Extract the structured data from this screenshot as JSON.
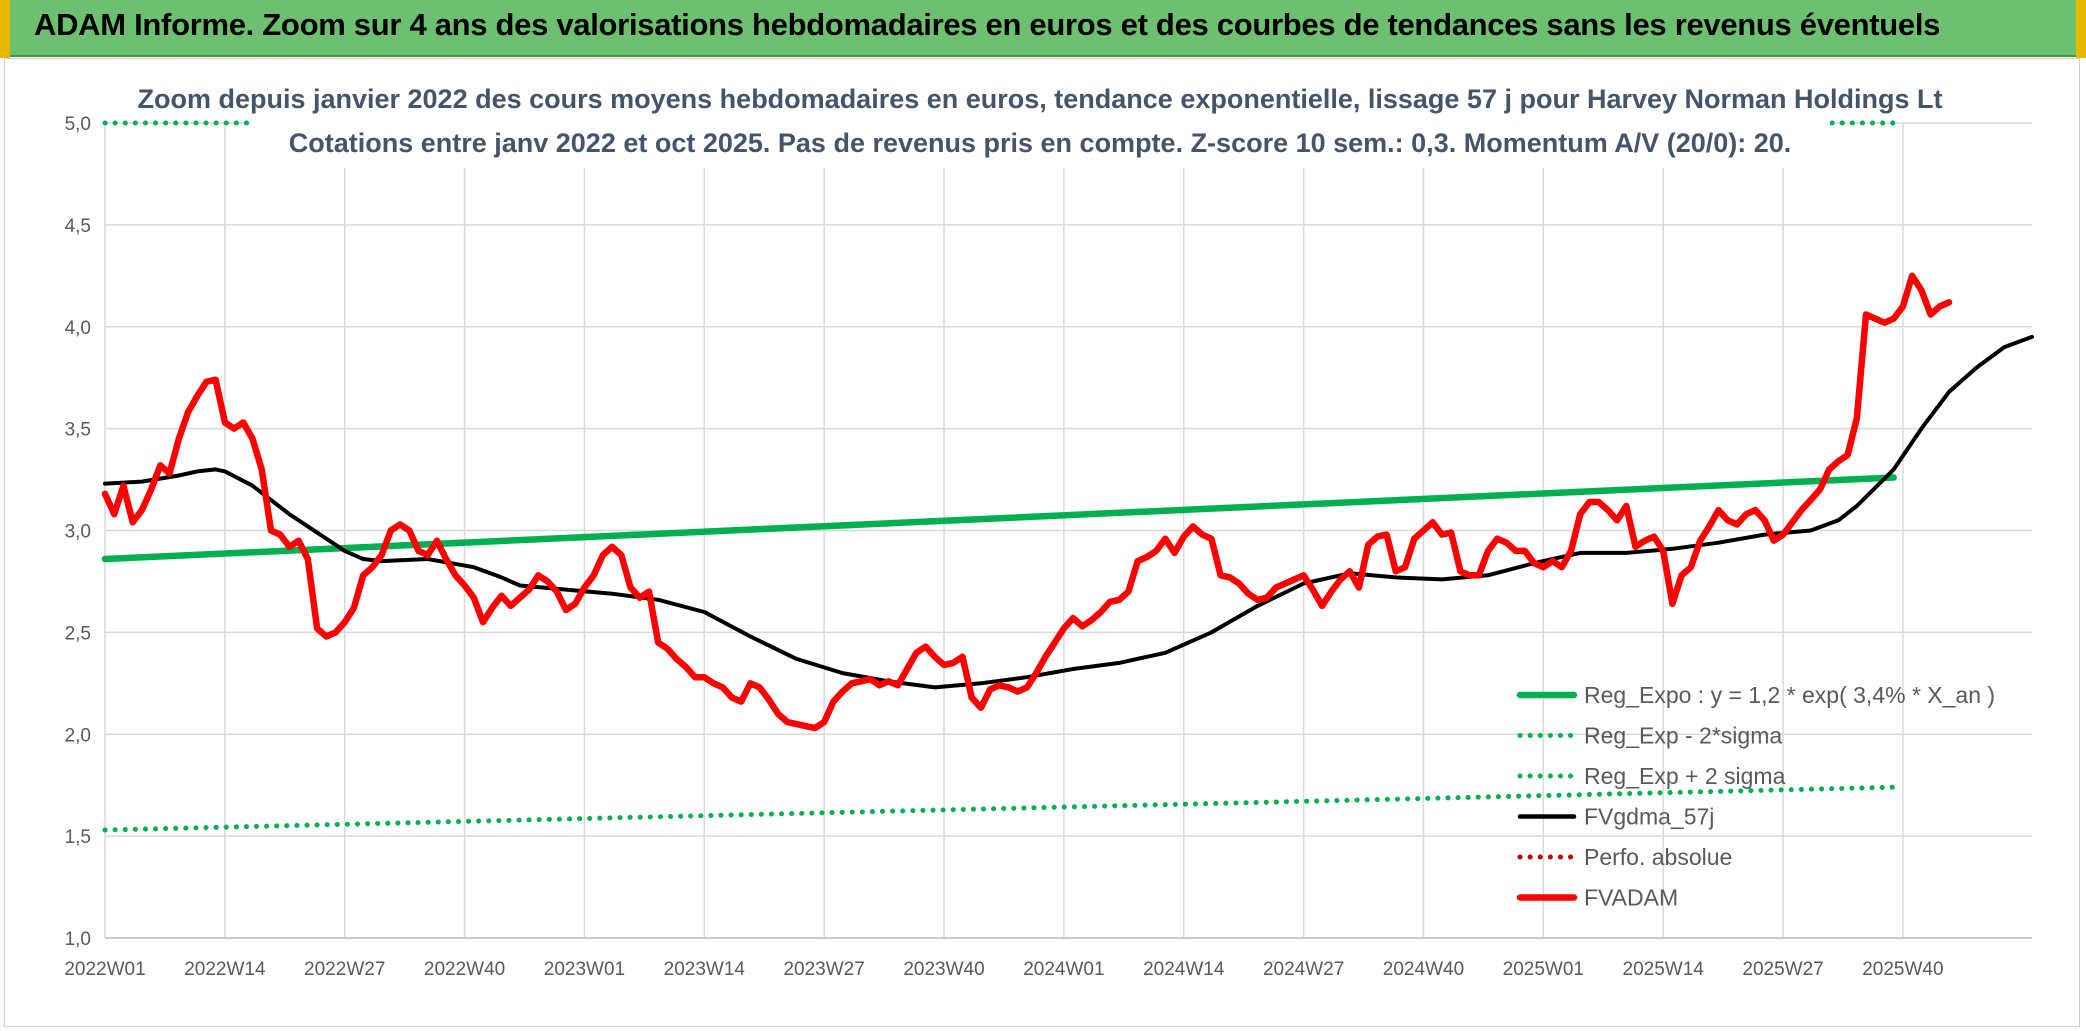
{
  "banner": {
    "title": "ADAM Informe. Zoom sur 4 ans des valorisations hebdomadaires en euros et des courbes de tendances sans les revenus éventuels"
  },
  "colors": {
    "banner_bg": "#6dc06f",
    "reg_expo": "#00b050",
    "fvgdma": "#000000",
    "fvadam": "#ff0000",
    "perfo": "#c00000"
  },
  "chart_data": {
    "type": "line",
    "title": "Zoom depuis janvier 2022 des cours moyens hebdomadaires en euros, tendance exponentielle, lissage 57 j pour Harvey Norman Holdings Lt",
    "subtitle": "Cotations entre janv 2022 et oct 2025. Pas de revenus pris en compte. Z-score 10 sem.: 0,3. Momentum A/V (20/0): 20.",
    "xlabel": "",
    "ylabel": "",
    "ylim": [
      1.0,
      5.0
    ],
    "yticks": [
      "1,0",
      "1,5",
      "2,0",
      "2,5",
      "3,0",
      "3,5",
      "4,0",
      "4,5",
      "5,0"
    ],
    "x_tick_labels": [
      "2022W01",
      "2022W14",
      "2022W27",
      "2022W40",
      "2023W01",
      "2023W14",
      "2023W27",
      "2023W40",
      "2024W01",
      "2024W14",
      "2024W27",
      "2024W40",
      "2025W01",
      "2025W14",
      "2025W27",
      "2025W40"
    ],
    "grid": true,
    "legend_position": "bottom-right",
    "series": [
      {
        "name": "Reg_Expo : y = 1,2 * exp( 3,4% *  X_an )",
        "style": "solid-thick",
        "color": "#00b050",
        "points": [
          [
            0,
            2.86
          ],
          [
            194,
            3.26
          ]
        ]
      },
      {
        "name": "Reg_Exp - 2*sigma",
        "style": "dotted",
        "color": "#00b050",
        "points": [
          [
            0,
            1.53
          ],
          [
            194,
            1.74
          ]
        ]
      },
      {
        "name": "Reg_Exp + 2 sigma",
        "style": "dotted",
        "color": "#00b050",
        "points": [
          [
            0,
            5.0
          ],
          [
            194,
            5.0
          ]
        ]
      },
      {
        "name": "FVgdma_57j",
        "style": "solid",
        "color": "#000000",
        "points": [
          [
            0,
            3.23
          ],
          [
            4,
            3.24
          ],
          [
            8,
            3.27
          ],
          [
            10,
            3.29
          ],
          [
            12,
            3.3
          ],
          [
            13,
            3.29
          ],
          [
            16,
            3.22
          ],
          [
            20,
            3.08
          ],
          [
            24,
            2.96
          ],
          [
            26,
            2.9
          ],
          [
            28,
            2.86
          ],
          [
            30,
            2.85
          ],
          [
            35,
            2.86
          ],
          [
            40,
            2.82
          ],
          [
            43,
            2.77
          ],
          [
            45,
            2.73
          ],
          [
            50,
            2.71
          ],
          [
            55,
            2.69
          ],
          [
            60,
            2.66
          ],
          [
            65,
            2.6
          ],
          [
            70,
            2.48
          ],
          [
            75,
            2.37
          ],
          [
            80,
            2.3
          ],
          [
            85,
            2.26
          ],
          [
            90,
            2.23
          ],
          [
            95,
            2.25
          ],
          [
            100,
            2.28
          ],
          [
            105,
            2.32
          ],
          [
            110,
            2.35
          ],
          [
            115,
            2.4
          ],
          [
            120,
            2.5
          ],
          [
            125,
            2.63
          ],
          [
            130,
            2.74
          ],
          [
            135,
            2.79
          ],
          [
            140,
            2.77
          ],
          [
            145,
            2.76
          ],
          [
            150,
            2.78
          ],
          [
            155,
            2.84
          ],
          [
            160,
            2.89
          ],
          [
            165,
            2.89
          ],
          [
            170,
            2.91
          ],
          [
            175,
            2.94
          ],
          [
            180,
            2.98
          ],
          [
            185,
            3.0
          ],
          [
            188,
            3.05
          ],
          [
            190,
            3.12
          ],
          [
            194,
            3.3
          ],
          [
            197,
            3.5
          ],
          [
            200,
            3.68
          ],
          [
            203,
            3.8
          ],
          [
            206,
            3.9
          ],
          [
            209,
            3.95
          ]
        ]
      },
      {
        "name": "Perfo. absolue",
        "style": "dotted",
        "color": "#c00000",
        "points": []
      },
      {
        "name": "FVADAM",
        "style": "solid-thick",
        "color": "#ff0000",
        "points": [
          [
            0,
            3.18
          ],
          [
            1,
            3.08
          ],
          [
            2,
            3.22
          ],
          [
            3,
            3.04
          ],
          [
            4,
            3.1
          ],
          [
            5,
            3.2
          ],
          [
            6,
            3.32
          ],
          [
            7,
            3.28
          ],
          [
            8,
            3.45
          ],
          [
            9,
            3.58
          ],
          [
            10,
            3.66
          ],
          [
            11,
            3.73
          ],
          [
            12,
            3.74
          ],
          [
            13,
            3.53
          ],
          [
            14,
            3.5
          ],
          [
            15,
            3.53
          ],
          [
            16,
            3.45
          ],
          [
            17,
            3.3
          ],
          [
            18,
            3.0
          ],
          [
            19,
            2.98
          ],
          [
            20,
            2.92
          ],
          [
            21,
            2.95
          ],
          [
            22,
            2.86
          ],
          [
            23,
            2.52
          ],
          [
            24,
            2.48
          ],
          [
            25,
            2.5
          ],
          [
            26,
            2.55
          ],
          [
            27,
            2.62
          ],
          [
            28,
            2.78
          ],
          [
            29,
            2.82
          ],
          [
            30,
            2.88
          ],
          [
            31,
            3.0
          ],
          [
            32,
            3.03
          ],
          [
            33,
            3.0
          ],
          [
            34,
            2.9
          ],
          [
            35,
            2.88
          ],
          [
            36,
            2.95
          ],
          [
            37,
            2.86
          ],
          [
            38,
            2.78
          ],
          [
            39,
            2.73
          ],
          [
            40,
            2.67
          ],
          [
            41,
            2.55
          ],
          [
            42,
            2.62
          ],
          [
            43,
            2.68
          ],
          [
            44,
            2.63
          ],
          [
            45,
            2.67
          ],
          [
            46,
            2.71
          ],
          [
            47,
            2.78
          ],
          [
            48,
            2.75
          ],
          [
            49,
            2.7
          ],
          [
            50,
            2.61
          ],
          [
            51,
            2.64
          ],
          [
            52,
            2.72
          ],
          [
            53,
            2.78
          ],
          [
            54,
            2.88
          ],
          [
            55,
            2.92
          ],
          [
            56,
            2.88
          ],
          [
            57,
            2.72
          ],
          [
            58,
            2.67
          ],
          [
            59,
            2.7
          ],
          [
            60,
            2.45
          ],
          [
            61,
            2.42
          ],
          [
            62,
            2.37
          ],
          [
            63,
            2.33
          ],
          [
            64,
            2.28
          ],
          [
            65,
            2.28
          ],
          [
            66,
            2.25
          ],
          [
            67,
            2.23
          ],
          [
            68,
            2.18
          ],
          [
            69,
            2.16
          ],
          [
            70,
            2.25
          ],
          [
            71,
            2.23
          ],
          [
            72,
            2.17
          ],
          [
            73,
            2.1
          ],
          [
            74,
            2.06
          ],
          [
            75,
            2.05
          ],
          [
            76,
            2.04
          ],
          [
            77,
            2.03
          ],
          [
            78,
            2.06
          ],
          [
            79,
            2.16
          ],
          [
            80,
            2.21
          ],
          [
            81,
            2.25
          ],
          [
            82,
            2.26
          ],
          [
            83,
            2.27
          ],
          [
            84,
            2.24
          ],
          [
            85,
            2.26
          ],
          [
            86,
            2.24
          ],
          [
            87,
            2.32
          ],
          [
            88,
            2.4
          ],
          [
            89,
            2.43
          ],
          [
            90,
            2.38
          ],
          [
            91,
            2.34
          ],
          [
            92,
            2.35
          ],
          [
            93,
            2.38
          ],
          [
            94,
            2.18
          ],
          [
            95,
            2.13
          ],
          [
            96,
            2.22
          ],
          [
            97,
            2.24
          ],
          [
            98,
            2.23
          ],
          [
            99,
            2.21
          ],
          [
            100,
            2.23
          ],
          [
            101,
            2.3
          ],
          [
            102,
            2.38
          ],
          [
            103,
            2.45
          ],
          [
            104,
            2.52
          ],
          [
            105,
            2.57
          ],
          [
            106,
            2.53
          ],
          [
            107,
            2.56
          ],
          [
            108,
            2.6
          ],
          [
            109,
            2.65
          ],
          [
            110,
            2.66
          ],
          [
            111,
            2.7
          ],
          [
            112,
            2.85
          ],
          [
            113,
            2.87
          ],
          [
            114,
            2.9
          ],
          [
            115,
            2.96
          ],
          [
            116,
            2.89
          ],
          [
            117,
            2.97
          ],
          [
            118,
            3.02
          ],
          [
            119,
            2.98
          ],
          [
            120,
            2.96
          ],
          [
            121,
            2.78
          ],
          [
            122,
            2.77
          ],
          [
            123,
            2.74
          ],
          [
            124,
            2.69
          ],
          [
            125,
            2.66
          ],
          [
            126,
            2.67
          ],
          [
            127,
            2.72
          ],
          [
            128,
            2.74
          ],
          [
            129,
            2.76
          ],
          [
            130,
            2.78
          ],
          [
            131,
            2.71
          ],
          [
            132,
            2.63
          ],
          [
            133,
            2.7
          ],
          [
            134,
            2.76
          ],
          [
            135,
            2.8
          ],
          [
            136,
            2.72
          ],
          [
            137,
            2.93
          ],
          [
            138,
            2.97
          ],
          [
            139,
            2.98
          ],
          [
            140,
            2.8
          ],
          [
            141,
            2.82
          ],
          [
            142,
            2.96
          ],
          [
            143,
            3.0
          ],
          [
            144,
            3.04
          ],
          [
            145,
            2.98
          ],
          [
            146,
            2.99
          ],
          [
            147,
            2.8
          ],
          [
            148,
            2.78
          ],
          [
            149,
            2.78
          ],
          [
            150,
            2.9
          ],
          [
            151,
            2.96
          ],
          [
            152,
            2.94
          ],
          [
            153,
            2.9
          ],
          [
            154,
            2.9
          ],
          [
            155,
            2.84
          ],
          [
            156,
            2.82
          ],
          [
            157,
            2.85
          ],
          [
            158,
            2.82
          ],
          [
            159,
            2.9
          ],
          [
            160,
            3.08
          ],
          [
            161,
            3.14
          ],
          [
            162,
            3.14
          ],
          [
            163,
            3.1
          ],
          [
            164,
            3.05
          ],
          [
            165,
            3.12
          ],
          [
            166,
            2.92
          ],
          [
            167,
            2.95
          ],
          [
            168,
            2.97
          ],
          [
            169,
            2.9
          ],
          [
            170,
            2.64
          ],
          [
            171,
            2.78
          ],
          [
            172,
            2.82
          ],
          [
            173,
            2.95
          ],
          [
            174,
            3.02
          ],
          [
            175,
            3.1
          ],
          [
            176,
            3.05
          ],
          [
            177,
            3.03
          ],
          [
            178,
            3.08
          ],
          [
            179,
            3.1
          ],
          [
            180,
            3.05
          ],
          [
            181,
            2.95
          ],
          [
            182,
            2.98
          ],
          [
            183,
            3.04
          ],
          [
            184,
            3.1
          ],
          [
            185,
            3.15
          ],
          [
            186,
            3.2
          ],
          [
            187,
            3.3
          ],
          [
            188,
            3.34
          ],
          [
            189,
            3.37
          ],
          [
            190,
            3.55
          ],
          [
            191,
            4.06
          ],
          [
            192,
            4.04
          ],
          [
            193,
            4.02
          ],
          [
            194,
            4.04
          ],
          [
            195,
            4.1
          ],
          [
            196,
            4.25
          ],
          [
            197,
            4.18
          ],
          [
            198,
            4.06
          ],
          [
            199,
            4.1
          ],
          [
            200,
            4.12
          ]
        ]
      }
    ]
  }
}
